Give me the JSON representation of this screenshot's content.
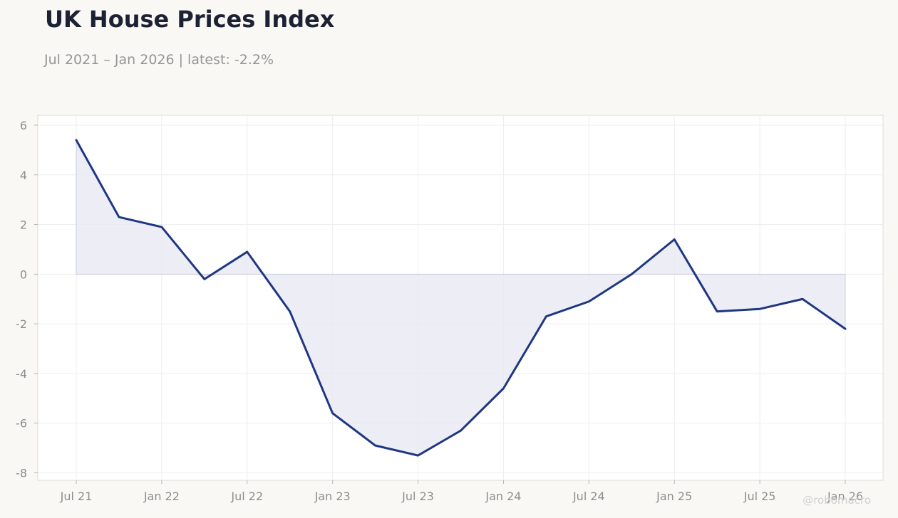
{
  "chart_data": {
    "type": "area",
    "title": "UK House Prices Index",
    "subtitle": "Jul 2021 – Jan 2026 | latest: -2.2%",
    "xlabel": "",
    "ylabel": "",
    "x_tick_labels": [
      "Jul 21",
      "Jan 22",
      "Jul 22",
      "Jan 23",
      "Jul 23",
      "Jan 24",
      "Jul 24",
      "Jan 25",
      "Jul 25",
      "Jan 26"
    ],
    "y_ticks": [
      -8,
      -6,
      -4,
      -2,
      0,
      2,
      4,
      6
    ],
    "ylim": [
      -8.3,
      6.4
    ],
    "grid": true,
    "legend": "none",
    "series": [
      {
        "x": [
          "2021-07",
          "2021-10",
          "2022-01",
          "2022-04",
          "2022-07",
          "2022-10",
          "2023-01",
          "2023-04",
          "2023-07",
          "2023-10",
          "2024-01",
          "2024-04",
          "2024-07",
          "2024-10",
          "2025-01",
          "2025-04",
          "2025-07",
          "2025-10",
          "2026-01"
        ],
        "values": [
          5.4,
          2.3,
          1.9,
          -0.2,
          0.9,
          -1.5,
          -5.6,
          -6.9,
          -7.3,
          -6.3,
          -4.6,
          -1.7,
          -1.1,
          0.0,
          1.4,
          -1.5,
          -1.4,
          -1.0,
          -2.2
        ]
      }
    ],
    "colors": {
      "line": "#1f3783",
      "fill": "#e7e8f1",
      "zero_line": "#c9ccdd",
      "grid": "#eeeeee",
      "frame": "#dcdcd6"
    }
  },
  "watermark": "@robomacro"
}
